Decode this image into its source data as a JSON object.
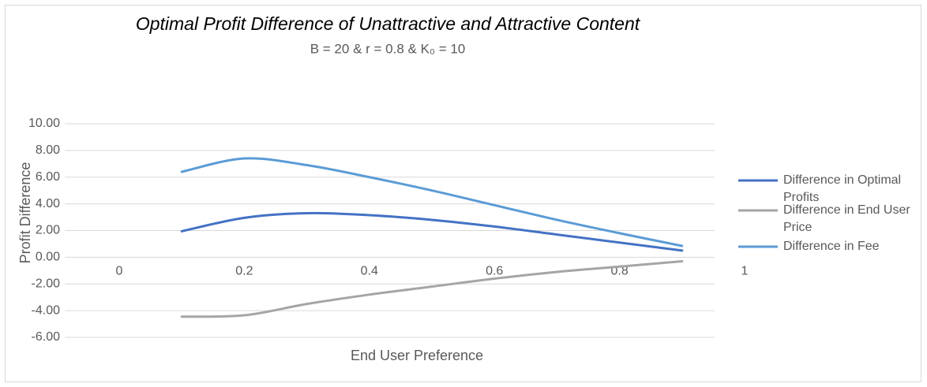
{
  "chart_data": {
    "type": "line",
    "title": "Optimal Profit Difference of Unattractive and Attractive Content",
    "subtitle": "B = 20 & r = 0.8 & K₀ = 10",
    "x_label": "End User Preference",
    "y_label": "Profit Difference",
    "x": [
      0.1,
      0.2,
      0.3,
      0.4,
      0.5,
      0.6,
      0.7,
      0.8,
      0.9
    ],
    "series": [
      {
        "name": "Difference in Optimal Profits",
        "color": "#4472c4",
        "values": [
          1.95,
          2.95,
          3.3,
          3.15,
          2.8,
          2.3,
          1.7,
          1.1,
          0.5
        ]
      },
      {
        "name": "Difference in End User Price",
        "color": "#a5a5a5",
        "values": [
          -4.45,
          -4.35,
          -3.5,
          -2.8,
          -2.2,
          -1.6,
          -1.1,
          -0.7,
          -0.3
        ]
      },
      {
        "name": "Difference in Fee",
        "color": "#5b9bd5",
        "values": [
          6.4,
          7.4,
          6.9,
          6.0,
          5.0,
          3.9,
          2.8,
          1.8,
          0.85
        ]
      }
    ],
    "xlim": [
      0,
      1
    ],
    "xticks": [
      0,
      0.2,
      0.4,
      0.6,
      0.8,
      1
    ],
    "ylim": [
      -6,
      10
    ],
    "yticks": [
      {
        "value": -6,
        "label": "-6.00"
      },
      {
        "value": -4,
        "label": "-4.00"
      },
      {
        "value": -2,
        "label": "-2.00"
      },
      {
        "value": 0,
        "label": "0.00"
      },
      {
        "value": 2,
        "label": "2.00"
      },
      {
        "value": 4,
        "label": "4.00"
      },
      {
        "value": 6,
        "label": "6.00"
      },
      {
        "value": 8,
        "label": "8.00"
      },
      {
        "value": 10,
        "label": "10.00"
      }
    ],
    "grid": true,
    "legend": "right"
  }
}
